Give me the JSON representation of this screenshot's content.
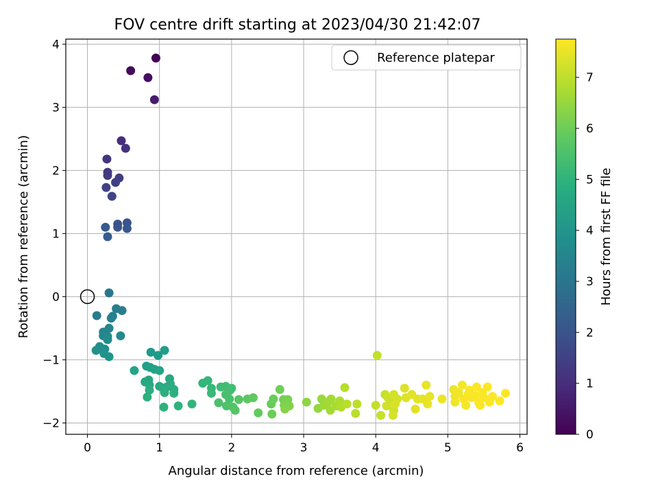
{
  "chart_data": {
    "type": "scatter",
    "title": "FOV centre drift starting at 2023/04/30 21:42:07",
    "xlabel": "Angular distance from reference (arcmin)",
    "ylabel": "Rotation from reference (arcmin)",
    "xlim": [
      -0.3,
      6.1
    ],
    "ylim": [
      -2.18,
      4.08
    ],
    "xticks": [
      0,
      1,
      2,
      3,
      4,
      5,
      6
    ],
    "yticks": [
      -2,
      -1,
      0,
      1,
      2,
      3,
      4
    ],
    "grid": true,
    "legend": {
      "placement": "top-right",
      "entries": [
        "Reference platepar"
      ]
    },
    "reference": {
      "x": 0,
      "y": 0
    },
    "colorbar": {
      "label": "Hours from first FF file",
      "colormap": "viridis",
      "range": [
        0,
        7.75
      ],
      "ticks": [
        0,
        1,
        2,
        3,
        4,
        5,
        6,
        7
      ]
    },
    "points": [
      {
        "x": 0.95,
        "y": 3.78,
        "c": 0.05
      },
      {
        "x": 0.6,
        "y": 3.58,
        "c": 0.2
      },
      {
        "x": 0.84,
        "y": 3.47,
        "c": 0.3
      },
      {
        "x": 0.93,
        "y": 3.12,
        "c": 0.6
      },
      {
        "x": 0.47,
        "y": 2.47,
        "c": 1.0
      },
      {
        "x": 0.53,
        "y": 2.35,
        "c": 1.1
      },
      {
        "x": 0.27,
        "y": 2.18,
        "c": 1.2
      },
      {
        "x": 0.28,
        "y": 1.97,
        "c": 1.3
      },
      {
        "x": 0.28,
        "y": 1.92,
        "c": 1.35
      },
      {
        "x": 0.44,
        "y": 1.88,
        "c": 1.4
      },
      {
        "x": 0.39,
        "y": 1.81,
        "c": 1.45
      },
      {
        "x": 0.26,
        "y": 1.73,
        "c": 1.5
      },
      {
        "x": 0.34,
        "y": 1.59,
        "c": 1.6
      },
      {
        "x": 0.55,
        "y": 1.17,
        "c": 2.0
      },
      {
        "x": 0.42,
        "y": 1.15,
        "c": 2.0
      },
      {
        "x": 0.42,
        "y": 1.1,
        "c": 2.05
      },
      {
        "x": 0.55,
        "y": 1.08,
        "c": 2.1
      },
      {
        "x": 0.25,
        "y": 1.1,
        "c": 2.2
      },
      {
        "x": 0.28,
        "y": 0.95,
        "c": 2.3
      },
      {
        "x": 0.3,
        "y": 0.06,
        "c": 3.0
      },
      {
        "x": 0.13,
        "y": -0.3,
        "c": 3.2
      },
      {
        "x": 0.4,
        "y": -0.19,
        "c": 3.3
      },
      {
        "x": 0.48,
        "y": -0.22,
        "c": 3.3
      },
      {
        "x": 0.35,
        "y": -0.31,
        "c": 3.35
      },
      {
        "x": 0.33,
        "y": -0.34,
        "c": 3.4
      },
      {
        "x": 0.3,
        "y": -0.5,
        "c": 3.5
      },
      {
        "x": 0.22,
        "y": -0.56,
        "c": 3.55
      },
      {
        "x": 0.22,
        "y": -0.62,
        "c": 3.6
      },
      {
        "x": 0.28,
        "y": -0.63,
        "c": 3.65
      },
      {
        "x": 0.46,
        "y": -0.62,
        "c": 3.7
      },
      {
        "x": 0.28,
        "y": -0.68,
        "c": 3.75
      },
      {
        "x": 0.17,
        "y": -0.79,
        "c": 3.8
      },
      {
        "x": 0.24,
        "y": -0.83,
        "c": 3.85
      },
      {
        "x": 0.12,
        "y": -0.85,
        "c": 3.9
      },
      {
        "x": 0.23,
        "y": -0.9,
        "c": 3.95
      },
      {
        "x": 0.3,
        "y": -0.95,
        "c": 4.0
      },
      {
        "x": 0.88,
        "y": -0.88,
        "c": 4.2
      },
      {
        "x": 0.98,
        "y": -0.93,
        "c": 4.25
      },
      {
        "x": 1.07,
        "y": -0.85,
        "c": 4.3
      },
      {
        "x": 0.82,
        "y": -1.1,
        "c": 4.35
      },
      {
        "x": 0.87,
        "y": -1.12,
        "c": 4.4
      },
      {
        "x": 0.93,
        "y": -1.15,
        "c": 4.45
      },
      {
        "x": 1.0,
        "y": -1.17,
        "c": 4.5
      },
      {
        "x": 0.65,
        "y": -1.17,
        "c": 4.5
      },
      {
        "x": 0.8,
        "y": -1.35,
        "c": 4.6
      },
      {
        "x": 0.85,
        "y": -1.32,
        "c": 4.6
      },
      {
        "x": 1.14,
        "y": -1.3,
        "c": 4.65
      },
      {
        "x": 0.86,
        "y": -1.4,
        "c": 4.7
      },
      {
        "x": 1.0,
        "y": -1.42,
        "c": 4.7
      },
      {
        "x": 1.05,
        "y": -1.45,
        "c": 4.75
      },
      {
        "x": 1.1,
        "y": -1.43,
        "c": 4.75
      },
      {
        "x": 1.15,
        "y": -1.38,
        "c": 4.8
      },
      {
        "x": 1.2,
        "y": -1.47,
        "c": 4.8
      },
      {
        "x": 0.86,
        "y": -1.48,
        "c": 4.85
      },
      {
        "x": 1.07,
        "y": -1.52,
        "c": 4.85
      },
      {
        "x": 1.2,
        "y": -1.53,
        "c": 4.9
      },
      {
        "x": 0.83,
        "y": -1.59,
        "c": 4.9
      },
      {
        "x": 1.06,
        "y": -1.75,
        "c": 4.95
      },
      {
        "x": 1.26,
        "y": -1.73,
        "c": 5.0
      },
      {
        "x": 1.45,
        "y": -1.7,
        "c": 5.05
      },
      {
        "x": 1.6,
        "y": -1.37,
        "c": 5.1
      },
      {
        "x": 1.67,
        "y": -1.33,
        "c": 5.15
      },
      {
        "x": 1.72,
        "y": -1.45,
        "c": 5.2
      },
      {
        "x": 1.72,
        "y": -1.53,
        "c": 5.25
      },
      {
        "x": 1.85,
        "y": -1.43,
        "c": 5.3
      },
      {
        "x": 1.92,
        "y": -1.42,
        "c": 5.35
      },
      {
        "x": 1.98,
        "y": -1.48,
        "c": 5.4
      },
      {
        "x": 2.0,
        "y": -1.45,
        "c": 5.4
      },
      {
        "x": 1.92,
        "y": -1.55,
        "c": 5.45
      },
      {
        "x": 1.97,
        "y": -1.62,
        "c": 5.5
      },
      {
        "x": 1.82,
        "y": -1.68,
        "c": 5.5
      },
      {
        "x": 1.93,
        "y": -1.73,
        "c": 5.55
      },
      {
        "x": 2.02,
        "y": -1.75,
        "c": 5.6
      },
      {
        "x": 2.05,
        "y": -1.8,
        "c": 5.65
      },
      {
        "x": 2.1,
        "y": -1.63,
        "c": 5.7
      },
      {
        "x": 2.22,
        "y": -1.62,
        "c": 5.75
      },
      {
        "x": 2.3,
        "y": -1.6,
        "c": 5.8
      },
      {
        "x": 2.37,
        "y": -1.84,
        "c": 5.85
      },
      {
        "x": 2.55,
        "y": -1.7,
        "c": 5.9
      },
      {
        "x": 2.58,
        "y": -1.62,
        "c": 5.95
      },
      {
        "x": 2.56,
        "y": -1.86,
        "c": 6.0
      },
      {
        "x": 2.67,
        "y": -1.47,
        "c": 6.05
      },
      {
        "x": 2.72,
        "y": -1.63,
        "c": 6.1
      },
      {
        "x": 2.78,
        "y": -1.63,
        "c": 6.15
      },
      {
        "x": 2.73,
        "y": -1.72,
        "c": 6.2
      },
      {
        "x": 2.8,
        "y": -1.73,
        "c": 6.25
      },
      {
        "x": 2.74,
        "y": -1.78,
        "c": 6.3
      },
      {
        "x": 3.04,
        "y": -1.67,
        "c": 6.4
      },
      {
        "x": 3.2,
        "y": -1.77,
        "c": 6.5
      },
      {
        "x": 3.25,
        "y": -1.62,
        "c": 6.55
      },
      {
        "x": 3.28,
        "y": -1.72,
        "c": 6.6
      },
      {
        "x": 3.34,
        "y": -1.67,
        "c": 6.65
      },
      {
        "x": 3.38,
        "y": -1.62,
        "c": 6.7
      },
      {
        "x": 3.37,
        "y": -1.8,
        "c": 6.7
      },
      {
        "x": 3.45,
        "y": -1.73,
        "c": 6.75
      },
      {
        "x": 3.5,
        "y": -1.65,
        "c": 6.8
      },
      {
        "x": 3.52,
        "y": -1.75,
        "c": 6.85
      },
      {
        "x": 3.57,
        "y": -1.44,
        "c": 6.9
      },
      {
        "x": 3.6,
        "y": -1.7,
        "c": 6.9
      },
      {
        "x": 3.72,
        "y": -1.85,
        "c": 6.95
      },
      {
        "x": 3.74,
        "y": -1.7,
        "c": 7.0
      },
      {
        "x": 4.02,
        "y": -0.93,
        "c": 7.05
      },
      {
        "x": 4.0,
        "y": -1.72,
        "c": 7.05
      },
      {
        "x": 4.07,
        "y": -1.88,
        "c": 7.1
      },
      {
        "x": 4.13,
        "y": -1.55,
        "c": 7.1
      },
      {
        "x": 4.17,
        "y": -1.6,
        "c": 7.15
      },
      {
        "x": 4.2,
        "y": -1.67,
        "c": 7.15
      },
      {
        "x": 4.15,
        "y": -1.73,
        "c": 7.2
      },
      {
        "x": 4.25,
        "y": -1.8,
        "c": 7.2
      },
      {
        "x": 4.25,
        "y": -1.55,
        "c": 7.25
      },
      {
        "x": 4.3,
        "y": -1.62,
        "c": 7.25
      },
      {
        "x": 4.27,
        "y": -1.7,
        "c": 7.3
      },
      {
        "x": 4.24,
        "y": -1.88,
        "c": 7.3
      },
      {
        "x": 4.4,
        "y": -1.45,
        "c": 7.35
      },
      {
        "x": 4.42,
        "y": -1.6,
        "c": 7.35
      },
      {
        "x": 4.5,
        "y": -1.55,
        "c": 7.4
      },
      {
        "x": 4.55,
        "y": -1.78,
        "c": 7.4
      },
      {
        "x": 4.58,
        "y": -1.62,
        "c": 7.45
      },
      {
        "x": 4.65,
        "y": -1.62,
        "c": 7.45
      },
      {
        "x": 4.7,
        "y": -1.4,
        "c": 7.5
      },
      {
        "x": 4.72,
        "y": -1.7,
        "c": 7.5
      },
      {
        "x": 4.75,
        "y": -1.58,
        "c": 7.5
      },
      {
        "x": 4.92,
        "y": -1.62,
        "c": 7.55
      },
      {
        "x": 5.08,
        "y": -1.47,
        "c": 7.55
      },
      {
        "x": 5.1,
        "y": -1.58,
        "c": 7.6
      },
      {
        "x": 5.1,
        "y": -1.67,
        "c": 7.6
      },
      {
        "x": 5.15,
        "y": -1.52,
        "c": 7.6
      },
      {
        "x": 5.2,
        "y": -1.4,
        "c": 7.65
      },
      {
        "x": 5.22,
        "y": -1.62,
        "c": 7.65
      },
      {
        "x": 5.25,
        "y": -1.72,
        "c": 7.65
      },
      {
        "x": 5.28,
        "y": -1.55,
        "c": 7.7
      },
      {
        "x": 5.3,
        "y": -1.48,
        "c": 7.7
      },
      {
        "x": 5.33,
        "y": -1.6,
        "c": 7.7
      },
      {
        "x": 5.38,
        "y": -1.57,
        "c": 7.7
      },
      {
        "x": 5.4,
        "y": -1.43,
        "c": 7.72
      },
      {
        "x": 5.43,
        "y": -1.68,
        "c": 7.72
      },
      {
        "x": 5.45,
        "y": -1.72,
        "c": 7.72
      },
      {
        "x": 5.48,
        "y": -1.52,
        "c": 7.73
      },
      {
        "x": 5.5,
        "y": -1.6,
        "c": 7.73
      },
      {
        "x": 5.55,
        "y": -1.43,
        "c": 7.74
      },
      {
        "x": 5.58,
        "y": -1.67,
        "c": 7.74
      },
      {
        "x": 5.62,
        "y": -1.58,
        "c": 7.74
      },
      {
        "x": 5.72,
        "y": -1.65,
        "c": 7.75
      },
      {
        "x": 5.8,
        "y": -1.53,
        "c": 7.75
      }
    ]
  }
}
